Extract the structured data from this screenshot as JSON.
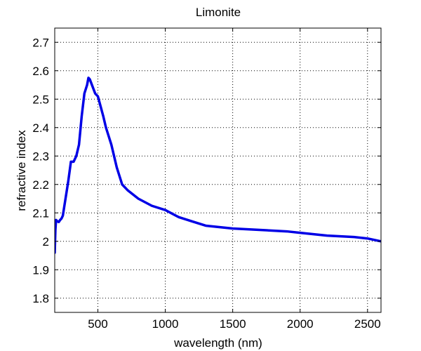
{
  "chart_data": {
    "type": "line",
    "title": "Limonite",
    "xlabel": "wavelength (nm)",
    "ylabel": "refractive index",
    "xlim": [
      180,
      2600
    ],
    "ylim": [
      1.75,
      2.75
    ],
    "xticks": [
      500,
      1000,
      1500,
      2000,
      2500
    ],
    "xtick_labels": [
      "500",
      "1000",
      "1500",
      "2000",
      "2500"
    ],
    "yticks": [
      1.8,
      1.9,
      2.0,
      2.1,
      2.2,
      2.3,
      2.4,
      2.5,
      2.6,
      2.7
    ],
    "ytick_labels": [
      "1.8",
      "1.9",
      "2",
      "2.1",
      "2.2",
      "2.3",
      "2.4",
      "2.5",
      "2.6",
      "2.7"
    ],
    "grid": true,
    "series": [
      {
        "color": "#0000e6",
        "x": [
          180,
          185,
          190,
          200,
          210,
          220,
          230,
          240,
          260,
          280,
          300,
          320,
          340,
          360,
          380,
          400,
          420,
          430,
          440,
          460,
          480,
          500,
          520,
          540,
          560,
          580,
          600,
          640,
          680,
          720,
          800,
          900,
          1000,
          1100,
          1200,
          1300,
          1500,
          1700,
          1900,
          2000,
          2100,
          2200,
          2400,
          2500,
          2600
        ],
        "y": [
          1.96,
          2.04,
          2.075,
          2.07,
          2.068,
          2.075,
          2.08,
          2.09,
          2.15,
          2.21,
          2.28,
          2.28,
          2.3,
          2.34,
          2.44,
          2.52,
          2.55,
          2.575,
          2.57,
          2.545,
          2.52,
          2.51,
          2.475,
          2.44,
          2.4,
          2.37,
          2.34,
          2.26,
          2.2,
          2.18,
          2.15,
          2.125,
          2.11,
          2.085,
          2.07,
          2.055,
          2.045,
          2.04,
          2.035,
          2.03,
          2.025,
          2.02,
          2.015,
          2.01,
          2.0
        ]
      }
    ]
  }
}
